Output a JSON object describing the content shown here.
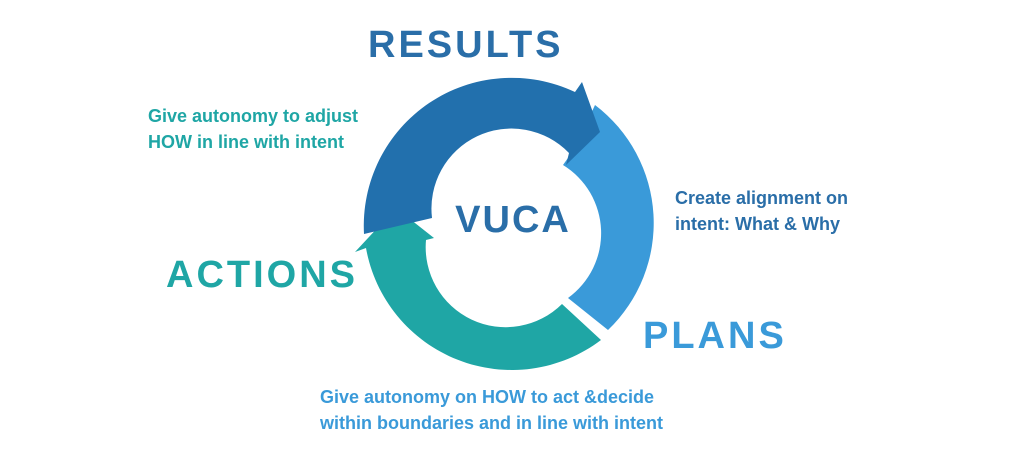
{
  "center_label": "VUCA",
  "stages": {
    "results": {
      "title": "RESULTS",
      "note_lines": [
        "Give autonomy to adjust",
        "HOW in line with intent"
      ],
      "color": "#2a6ea8"
    },
    "plans": {
      "title": "PLANS",
      "note_lines": [
        "Create alignment on",
        "intent: What & Why"
      ],
      "color": "#3a9ad9"
    },
    "actions": {
      "title": "ACTIONS",
      "note_lines": [
        "Give autonomy on HOW to act &decide",
        "within boundaries and in line with intent"
      ],
      "color": "#1fa6a5"
    }
  },
  "colors": {
    "results_arrow": "#2270ad",
    "plans_arrow": "#3a9ad9",
    "actions_arrow": "#1fa6a5",
    "results_note": "#1fa6a5",
    "plans_note": "#2a6ea8",
    "actions_note": "#3a9ad9",
    "center_text": "#2a6ea8"
  }
}
